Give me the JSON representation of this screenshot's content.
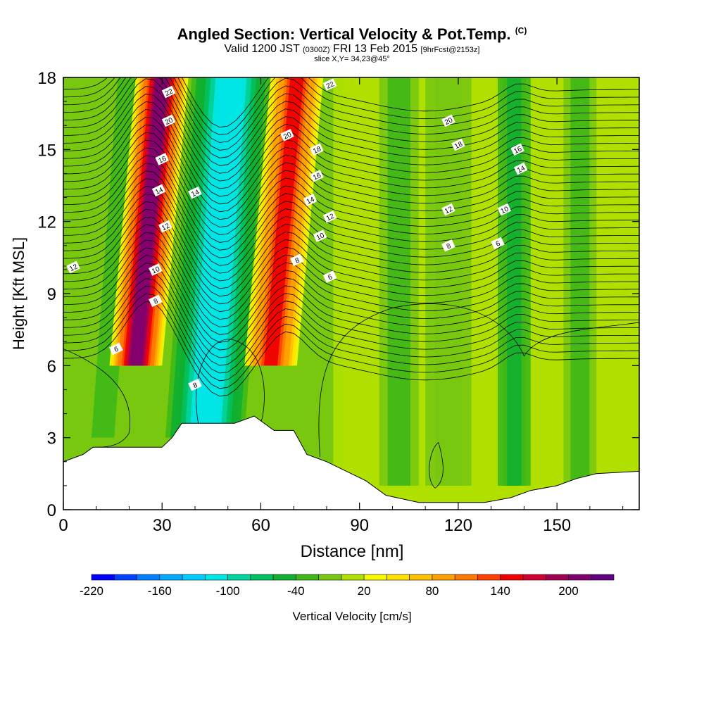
{
  "header": {
    "title": "Angled Section: Vertical Velocity & Pot.Temp.",
    "title_suffix": "(C)",
    "valid_prefix": "Valid 1200 JST",
    "valid_utc": "(0300Z)",
    "valid_date": "FRI 13 Feb 2015",
    "forecast": "[9hrFcst@2153z]",
    "slice": "slice X,Y= 34,23@45°"
  },
  "chart_data": {
    "type": "heatmap",
    "xlabel": "Distance [nm]",
    "ylabel": "Height [Kft MSL]",
    "xlim": [
      0,
      175
    ],
    "ylim": [
      0,
      18
    ],
    "x_ticks": [
      0,
      30,
      60,
      90,
      120,
      150
    ],
    "y_ticks": [
      0,
      3,
      6,
      9,
      12,
      15,
      18
    ],
    "colorbar": {
      "label": "Vertical Velocity [cm/s]",
      "tick_labels": [
        -220,
        -160,
        -100,
        -40,
        20,
        80,
        140,
        200
      ],
      "colors": [
        "#0000ff",
        "#0040ff",
        "#0080ff",
        "#00aaff",
        "#00ccff",
        "#00e6e6",
        "#00d4a0",
        "#00c060",
        "#10b030",
        "#40b818",
        "#78c810",
        "#b0e000",
        "#f8f800",
        "#ffe000",
        "#ffc000",
        "#ffa000",
        "#ff7800",
        "#ff4000",
        "#f00000",
        "#d00030",
        "#a00050",
        "#800070",
        "#600080"
      ]
    },
    "velocity_columns": [
      {
        "x": 2,
        "w": 6,
        "v": -20
      },
      {
        "x": 16,
        "w": 6,
        "v": -40
      },
      {
        "x": 26,
        "w": 8,
        "v": 200
      },
      {
        "x": 47,
        "w": 12,
        "v": -130
      },
      {
        "x": 67,
        "w": 8,
        "v": 140
      },
      {
        "x": 90,
        "w": 8,
        "v": 0
      },
      {
        "x": 102,
        "w": 6,
        "v": -40
      },
      {
        "x": 117,
        "w": 7,
        "v": -20
      },
      {
        "x": 137,
        "w": 5,
        "v": -60
      },
      {
        "x": 157,
        "w": 5,
        "v": -40
      }
    ],
    "theta_labels": [
      "6",
      "8",
      "10",
      "12",
      "14",
      "16",
      "18",
      "20",
      "22"
    ],
    "terrain": [
      [
        0,
        2
      ],
      [
        6,
        2.3
      ],
      [
        9,
        2.6
      ],
      [
        30,
        2.6
      ],
      [
        33,
        3
      ],
      [
        36,
        3.6
      ],
      [
        52,
        3.6
      ],
      [
        58,
        3.9
      ],
      [
        64,
        3.3
      ],
      [
        70,
        3.3
      ],
      [
        74,
        2.3
      ],
      [
        80,
        2
      ],
      [
        86,
        1.6
      ],
      [
        92,
        1.2
      ],
      [
        98,
        0.6
      ],
      [
        108,
        0.3
      ],
      [
        120,
        0.3
      ],
      [
        128,
        0.3
      ],
      [
        136,
        0.5
      ],
      [
        142,
        0.8
      ],
      [
        150,
        1
      ],
      [
        156,
        1.3
      ],
      [
        162,
        1.5
      ],
      [
        175,
        1.6
      ]
    ]
  }
}
